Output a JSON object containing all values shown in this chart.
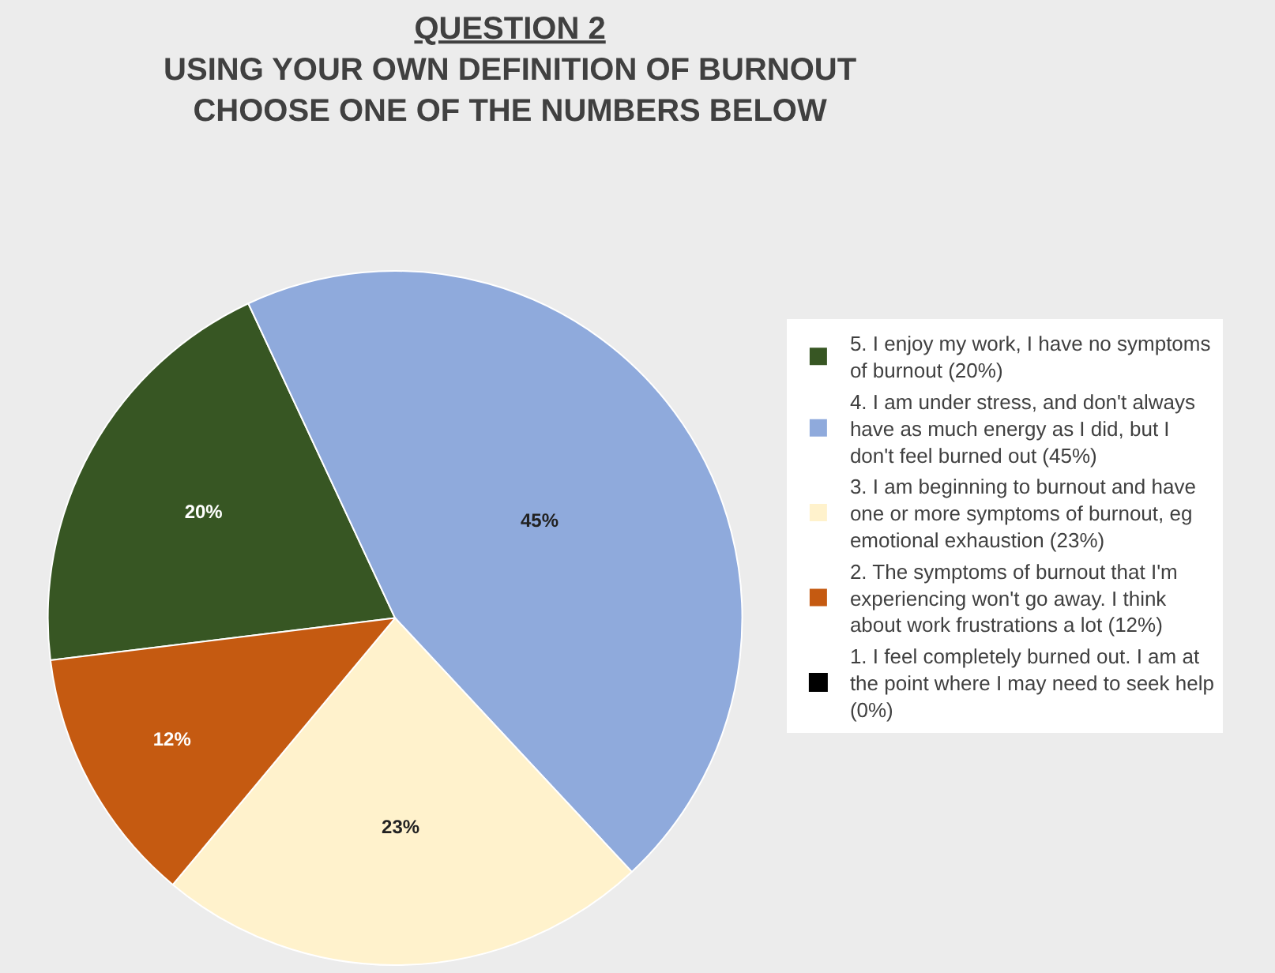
{
  "chart_data": {
    "type": "pie",
    "title": "QUESTION 2\nUSING YOUR OWN DEFINITION OF BURNOUT\nCHOOSE ONE OF THE NUMBERS BELOW",
    "categories": [
      "5. I enjoy my work, I have no symptoms of burnout (20%)",
      "4. I am under stress, and don't always have as much energy as I did, but I don't feel burned out (45%)",
      "3. I am beginning to burnout and have one or more symptoms of burnout, eg emotional exhaustion (23%)",
      "2. The symptoms of burnout that I'm experiencing won't go away. I think about work frustrations a lot (12%)",
      "1. I feel completely burned out. I am at the point where I may need to seek help (0%)"
    ],
    "values": [
      20,
      45,
      23,
      12,
      0
    ],
    "value_labels": [
      "20%",
      "45%",
      "23%",
      "12%",
      null
    ],
    "colors": [
      "#375623",
      "#8faadc",
      "#fff2cc",
      "#c55a11",
      "#000000"
    ],
    "legend": "right"
  }
}
